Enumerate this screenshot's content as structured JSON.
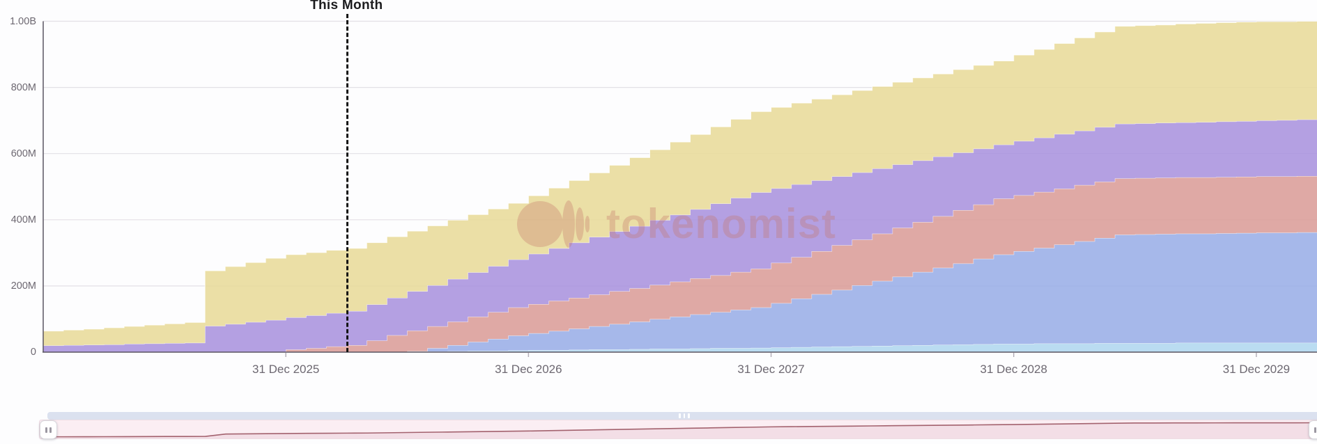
{
  "chart": {
    "annotation_label": "This Month",
    "watermark_text": "tokenomist",
    "y_axis_labels": [
      "1.00B",
      "800M",
      "600M",
      "400M",
      "200M",
      "0"
    ],
    "x_axis_labels": [
      "31 Dec 2025",
      "31 Dec 2026",
      "31 Dec 2027",
      "31 Dec 2028",
      "31 Dec 2029"
    ]
  },
  "chart_data": {
    "type": "area",
    "stacked": true,
    "value_unit": "millions of tokens",
    "total_supply_millions": 1000,
    "months_start": "Jan 2025",
    "months_count": 63,
    "ylim_millions": [
      0,
      1000
    ],
    "y_tick_values_millions": [
      1000,
      800,
      600,
      400,
      200,
      0
    ],
    "y_tick_labels": [
      "1.00B",
      "800M",
      "600M",
      "400M",
      "200M",
      "0"
    ],
    "x_tick_labels": [
      "31 Dec 2025",
      "31 Dec 2026",
      "31 Dec 2027",
      "31 Dec 2028",
      "31 Dec 2029"
    ],
    "x_tick_after_month_index": [
      12,
      24,
      36,
      48,
      60
    ],
    "this_month_at_month_index": 15,
    "grid": true,
    "annotation": {
      "label": "This Month",
      "style": "black dashed vertical line"
    },
    "series": [
      {
        "name": "series-1-lightblue",
        "color": "#aed6ef",
        "values": [
          0,
          0,
          0,
          0,
          0,
          0,
          0,
          0,
          0,
          0,
          0,
          0,
          0,
          0,
          0,
          0,
          0,
          1,
          2,
          2,
          3,
          4,
          4,
          5,
          6,
          6,
          7,
          8,
          8,
          9,
          10,
          10,
          11,
          12,
          12,
          13,
          14,
          15,
          16,
          17,
          18,
          19,
          20,
          21,
          22,
          23,
          24,
          25,
          25,
          26,
          26,
          26,
          27,
          27,
          27,
          27,
          28,
          28,
          28,
          28,
          28,
          28,
          28
        ]
      },
      {
        "name": "series-2-periwinkle",
        "color": "#97abe6",
        "values": [
          0,
          0,
          0,
          0,
          0,
          0,
          0,
          0,
          0,
          0,
          0,
          0,
          0,
          0,
          0,
          0,
          0,
          0,
          1,
          10,
          18,
          27,
          36,
          45,
          51,
          58,
          64,
          70,
          77,
          83,
          90,
          97,
          103,
          109,
          116,
          122,
          134,
          147,
          159,
          171,
          184,
          196,
          208,
          221,
          233,
          245,
          258,
          270,
          280,
          289,
          299,
          309,
          318,
          328,
          329,
          330,
          330,
          330,
          331,
          332,
          333,
          333,
          334
        ]
      },
      {
        "name": "series-3-salmon",
        "color": "#d99a95",
        "values": [
          0,
          0,
          0,
          0,
          0,
          0,
          0,
          0,
          0,
          0,
          0,
          0,
          8,
          12,
          17,
          21,
          35,
          50,
          62,
          66,
          71,
          76,
          81,
          85,
          88,
          91,
          93,
          96,
          99,
          101,
          103,
          106,
          109,
          111,
          114,
          117,
          122,
          125,
          130,
          135,
          138,
          143,
          148,
          151,
          156,
          161,
          164,
          169,
          169,
          169,
          169,
          170,
          170,
          170,
          170,
          170,
          170,
          170,
          170,
          170,
          170,
          170,
          170
        ]
      },
      {
        "name": "series-4-purple",
        "color": "#a78fdd",
        "values": [
          20,
          21,
          22,
          23,
          25,
          26,
          27,
          28,
          79,
          85,
          91,
          97,
          97,
          99,
          101,
          103,
          109,
          113,
          119,
          124,
          129,
          134,
          139,
          145,
          152,
          159,
          167,
          174,
          181,
          188,
          196,
          202,
          209,
          217,
          224,
          231,
          225,
          220,
          214,
          208,
          203,
          197,
          191,
          186,
          180,
          174,
          169,
          163,
          164,
          164,
          165,
          164,
          165,
          165,
          165,
          166,
          166,
          167,
          168,
          168,
          169,
          170,
          171
        ]
      },
      {
        "name": "series-5-khaki",
        "color": "#e7d997",
        "values": [
          44,
          46,
          48,
          51,
          53,
          56,
          59,
          62,
          167,
          174,
          180,
          187,
          190,
          190,
          190,
          190,
          187,
          185,
          182,
          180,
          178,
          175,
          173,
          170,
          176,
          182,
          188,
          194,
          200,
          207,
          213,
          220,
          226,
          232,
          238,
          244,
          245,
          246,
          246,
          247,
          248,
          248,
          249,
          250,
          250,
          251,
          252,
          253,
          260,
          267,
          274,
          281,
          288,
          295,
          296,
          296,
          298,
          299,
          299,
          300,
          299,
          298,
          297
        ]
      }
    ]
  },
  "navigator": {
    "description": "timeline brush showing total unlocked supply",
    "line_color": "#a3626e",
    "panel_color": "#fbeef3",
    "scrollbar_color": "#dbe1ef"
  }
}
